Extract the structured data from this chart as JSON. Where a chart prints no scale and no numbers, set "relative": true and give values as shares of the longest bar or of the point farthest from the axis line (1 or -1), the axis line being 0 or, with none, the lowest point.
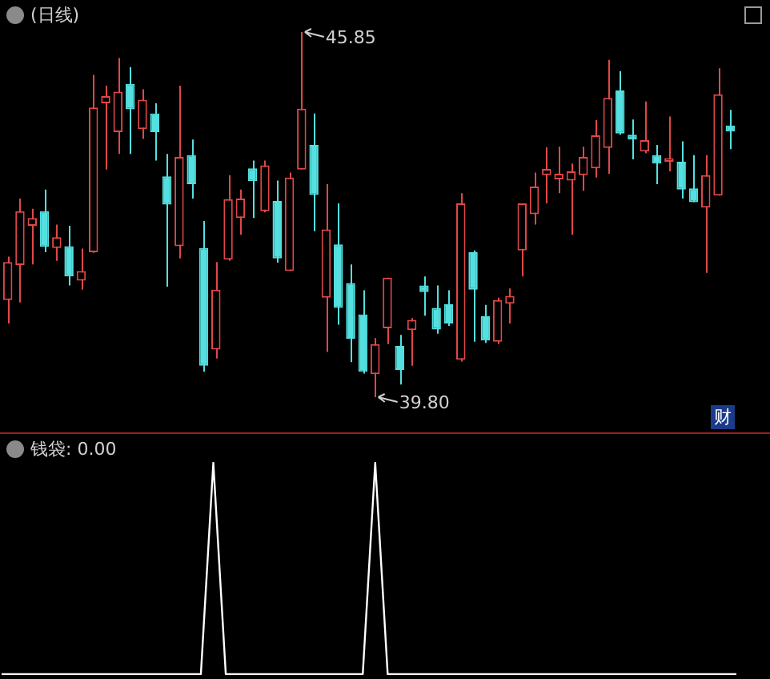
{
  "chart_data": [
    {
      "type": "candlestick",
      "title": "(日线)",
      "colors": [
        "#e04848",
        "#e04848",
        "#e04848",
        "#54e0e0",
        "#e04848",
        "#54e0e0",
        "#e04848",
        "#e04848",
        "#e04848",
        "#e04848",
        "#54e0e0",
        "#e04848",
        "#54e0e0",
        "#54e0e0",
        "#e04848",
        "#54e0e0",
        "#54e0e0",
        "#e04848",
        "#e04848",
        "#e04848",
        "#54e0e0",
        "#e04848",
        "#54e0e0",
        "#e04848",
        "#e04848",
        "#54e0e0",
        "#e04848",
        "#54e0e0",
        "#54e0e0",
        "#54e0e0",
        "#e04848",
        "#e04848",
        "#54e0e0",
        "#e04848",
        "#54e0e0",
        "#54e0e0",
        "#54e0e0",
        "#e04848",
        "#54e0e0",
        "#54e0e0",
        "#e04848",
        "#e04848",
        "#e04848",
        "#e04848",
        "#e04848",
        "#e04848",
        "#e04848",
        "#e04848",
        "#e04848",
        "#e04848",
        "#54e0e0",
        "#54e0e0",
        "#e04848",
        "#54e0e0",
        "#e04848",
        "#54e0e0",
        "#54e0e0",
        "#e04848",
        "#e04848",
        "#54e0e0"
      ],
      "categories": [
        null,
        null,
        null,
        null,
        null,
        null,
        null,
        null,
        null,
        null,
        null,
        null,
        null,
        null,
        null,
        null,
        null,
        null,
        null,
        null,
        null,
        null,
        null,
        null,
        null,
        null,
        null,
        null,
        null,
        null,
        null,
        null,
        null,
        null,
        null,
        null,
        null,
        null,
        null,
        null,
        null,
        null,
        null,
        null,
        null,
        null,
        null,
        null,
        null,
        null,
        null,
        null,
        null,
        null,
        null,
        null,
        null,
        null,
        null,
        null
      ],
      "ohlc": [
        [
          41.41,
          42.13,
          41.02,
          42.04
        ],
        [
          41.99,
          43.09,
          41.37,
          42.88
        ],
        [
          42.64,
          42.92,
          42.0,
          42.77
        ],
        [
          42.88,
          43.24,
          42.2,
          42.29
        ],
        [
          42.27,
          42.66,
          42.06,
          42.45
        ],
        [
          42.3,
          42.64,
          41.65,
          41.8
        ],
        [
          41.73,
          42.26,
          41.58,
          41.89
        ],
        [
          42.2,
          45.14,
          42.19,
          44.6
        ],
        [
          44.67,
          44.96,
          43.57,
          44.79
        ],
        [
          44.19,
          45.42,
          43.83,
          44.86
        ],
        [
          44.99,
          45.27,
          43.83,
          44.57
        ],
        [
          44.24,
          44.9,
          44.08,
          44.73
        ],
        [
          44.5,
          44.67,
          43.72,
          44.19
        ],
        [
          43.46,
          43.83,
          41.63,
          42.99
        ],
        [
          42.3,
          44.96,
          42.1,
          43.78
        ],
        [
          43.81,
          44.07,
          43.09,
          43.33
        ],
        [
          42.27,
          42.72,
          40.22,
          40.32
        ],
        [
          40.59,
          42.04,
          40.44,
          41.58
        ],
        [
          42.08,
          43.48,
          42.06,
          43.08
        ],
        [
          42.77,
          43.24,
          42.49,
          43.09
        ],
        [
          43.59,
          43.72,
          42.77,
          43.38
        ],
        [
          42.88,
          43.72,
          42.86,
          43.64
        ],
        [
          43.05,
          43.39,
          42.03,
          42.1
        ],
        [
          41.89,
          43.52,
          41.89,
          43.44
        ],
        [
          43.57,
          45.85,
          43.57,
          44.58
        ],
        [
          43.98,
          44.5,
          42.55,
          43.15
        ],
        [
          41.45,
          43.33,
          40.55,
          42.58
        ],
        [
          42.33,
          43.01,
          41.0,
          41.28
        ],
        [
          41.69,
          42.0,
          40.38,
          40.77
        ],
        [
          41.17,
          41.57,
          40.19,
          40.22
        ],
        [
          40.18,
          40.78,
          39.8,
          40.68
        ],
        [
          40.94,
          41.78,
          40.68,
          41.78
        ],
        [
          40.65,
          40.83,
          40.01,
          40.25
        ],
        [
          40.91,
          41.11,
          40.32,
          41.08
        ],
        [
          41.65,
          41.8,
          41.15,
          41.54
        ],
        [
          41.28,
          41.65,
          40.85,
          40.92
        ],
        [
          41.34,
          41.57,
          40.98,
          41.02
        ],
        [
          40.42,
          43.18,
          40.39,
          43.01
        ],
        [
          42.2,
          42.23,
          40.72,
          41.58
        ],
        [
          41.14,
          41.33,
          40.7,
          40.74
        ],
        [
          40.72,
          41.45,
          40.68,
          41.41
        ],
        [
          41.35,
          41.6,
          41.02,
          41.48
        ],
        [
          42.23,
          43.01,
          41.8,
          43.01
        ],
        [
          42.83,
          43.52,
          42.66,
          43.29
        ],
        [
          43.48,
          43.94,
          43.01,
          43.58
        ],
        [
          43.41,
          43.95,
          43.18,
          43.5
        ],
        [
          43.39,
          43.67,
          42.49,
          43.54
        ],
        [
          43.48,
          43.95,
          43.22,
          43.78
        ],
        [
          43.59,
          44.39,
          43.44,
          44.14
        ],
        [
          43.93,
          45.39,
          43.5,
          44.76
        ],
        [
          44.88,
          45.2,
          44.15,
          44.17
        ],
        [
          44.15,
          44.4,
          43.74,
          44.07
        ],
        [
          43.87,
          44.7,
          43.84,
          44.06
        ],
        [
          43.81,
          43.98,
          43.33,
          43.67
        ],
        [
          43.7,
          44.45,
          43.54,
          43.76
        ],
        [
          43.7,
          44.04,
          43.09,
          43.24
        ],
        [
          43.26,
          43.81,
          43.03,
          43.03
        ],
        [
          42.94,
          43.81,
          41.86,
          43.48
        ],
        [
          43.14,
          45.25,
          43.14,
          44.82
        ],
        [
          44.3,
          44.56,
          43.91,
          44.2
        ]
      ],
      "annotations": [
        "45.85",
        "39.80",
        "财"
      ]
    },
    {
      "type": "line",
      "title": "钱袋: 0.00",
      "relative": true,
      "marker": "none",
      "categories": [
        null,
        null,
        null,
        null,
        null,
        null,
        null,
        null,
        null,
        null,
        null,
        null,
        null,
        null,
        null,
        null,
        null,
        null,
        null,
        null,
        null,
        null,
        null,
        null,
        null,
        null,
        null,
        null,
        null,
        null,
        null,
        null,
        null,
        null,
        null,
        null,
        null,
        null,
        null,
        null,
        null,
        null,
        null,
        null,
        null,
        null,
        null,
        null,
        null,
        null,
        null,
        null,
        null,
        null,
        null,
        null,
        null,
        null,
        null,
        null
      ],
      "series": [
        {
          "color": "#ffffff",
          "values": [
            0,
            0,
            0,
            0,
            0,
            0,
            0,
            0,
            0,
            0,
            0,
            0,
            0,
            0,
            0,
            0,
            0,
            1,
            0,
            0,
            0,
            0,
            0,
            0,
            0,
            0,
            0,
            0,
            0,
            0,
            1,
            0,
            0,
            0,
            0,
            0,
            0,
            0,
            0,
            0,
            0,
            0,
            0,
            0,
            0,
            0,
            0,
            0,
            0,
            0,
            0,
            0,
            0,
            0,
            0,
            0,
            0,
            0,
            0,
            0
          ]
        }
      ]
    }
  ]
}
